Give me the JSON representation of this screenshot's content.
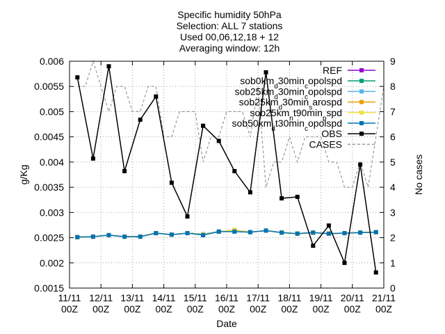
{
  "chart_data": {
    "type": "line",
    "title_lines": [
      "Specific humidity 50hPa",
      "Selection: ALL       7 stations",
      "Used 00,06,12,18 + 12",
      "Averaging window: 12h"
    ],
    "xlabel": "Date",
    "ylabel": "g/Kg",
    "y2label": "No cases",
    "grid": true,
    "legend_position": "top-right",
    "x_range": [
      0,
      20
    ],
    "y_range": [
      0.0015,
      0.006
    ],
    "y2_range": [
      0,
      9
    ],
    "x_ticks": [
      {
        "x": 0,
        "line1": "11/11",
        "line2": "00Z"
      },
      {
        "x": 2,
        "line1": "12/11",
        "line2": "00Z"
      },
      {
        "x": 4,
        "line1": "13/11",
        "line2": "00Z"
      },
      {
        "x": 6,
        "line1": "14/11",
        "line2": "00Z"
      },
      {
        "x": 8,
        "line1": "15/11",
        "line2": "00Z"
      },
      {
        "x": 10,
        "line1": "16/11",
        "line2": "00Z"
      },
      {
        "x": 12,
        "line1": "17/11",
        "line2": "00Z"
      },
      {
        "x": 14,
        "line1": "18/11",
        "line2": "00Z"
      },
      {
        "x": 16,
        "line1": "19/11",
        "line2": "00Z"
      },
      {
        "x": 18,
        "line1": "20/11",
        "line2": "00Z"
      },
      {
        "x": 20,
        "line1": "21/11",
        "line2": "00Z"
      }
    ],
    "y_ticks": [
      {
        "v": 0.0015,
        "label": "0.0015"
      },
      {
        "v": 0.002,
        "label": "0.002"
      },
      {
        "v": 0.0025,
        "label": "0.0025"
      },
      {
        "v": 0.003,
        "label": "0.003"
      },
      {
        "v": 0.0035,
        "label": "0.0035"
      },
      {
        "v": 0.004,
        "label": "0.004"
      },
      {
        "v": 0.0045,
        "label": "0.0045"
      },
      {
        "v": 0.005,
        "label": "0.005"
      },
      {
        "v": 0.0055,
        "label": "0.0055"
      },
      {
        "v": 0.006,
        "label": "0.006"
      }
    ],
    "y2_ticks": [
      {
        "v": 0,
        "label": "0"
      },
      {
        "v": 1,
        "label": "1"
      },
      {
        "v": 2,
        "label": "2"
      },
      {
        "v": 3,
        "label": "3"
      },
      {
        "v": 4,
        "label": "4"
      },
      {
        "v": 5,
        "label": "5"
      },
      {
        "v": 6,
        "label": "6"
      },
      {
        "v": 7,
        "label": "7"
      },
      {
        "v": 8,
        "label": "8"
      },
      {
        "v": 9,
        "label": "9"
      }
    ],
    "x": [
      0.5,
      1,
      1.5,
      2,
      2.5,
      3,
      3.5,
      4,
      4.5,
      5,
      5.5,
      6,
      6.5,
      7,
      7.5,
      8,
      8.5,
      9,
      9.5,
      10,
      10.5,
      11,
      11.5,
      12,
      12.5,
      13,
      13.5,
      14,
      14.5,
      15,
      15.5,
      16,
      16.5,
      17,
      17.5,
      18,
      18.5,
      19,
      19.5
    ],
    "series": [
      {
        "name": "REF",
        "color": "#9400d3",
        "marker": "square",
        "dash": "solid",
        "axis": "y",
        "legend_parts": [
          {
            "t": "REF"
          }
        ],
        "points": [
          [
            0.5,
            0.00251
          ],
          [
            1.5,
            0.00252
          ],
          [
            2.5,
            0.00255
          ],
          [
            3.5,
            0.00252
          ],
          [
            4.5,
            0.00252
          ],
          [
            5.5,
            0.00259
          ],
          [
            6.5,
            0.00256
          ],
          [
            7.5,
            0.00259
          ],
          [
            8.5,
            0.00257
          ],
          [
            9.5,
            0.00262
          ],
          [
            10.5,
            0.00263
          ],
          [
            11.5,
            0.00261
          ],
          [
            12.5,
            0.00264
          ],
          [
            13.5,
            0.0026
          ],
          [
            14.5,
            0.00258
          ],
          [
            15.5,
            0.0026
          ],
          [
            16.5,
            0.00258
          ],
          [
            17.5,
            0.00259
          ],
          [
            18.5,
            0.0026
          ],
          [
            19.5,
            0.00261
          ]
        ]
      },
      {
        "name": "sob0km_d30min_copolspd",
        "color": "#009e73",
        "marker": "square",
        "dash": "solid",
        "axis": "y",
        "legend_parts": [
          {
            "t": "sob0km"
          },
          {
            "t": "d",
            "sub": true
          },
          {
            "t": "30min"
          },
          {
            "t": "c",
            "sub": true
          },
          {
            "t": "opolspd"
          }
        ],
        "points": [
          [
            0.5,
            0.00251
          ],
          [
            1.5,
            0.00252
          ],
          [
            2.5,
            0.00255
          ],
          [
            3.5,
            0.00252
          ],
          [
            4.5,
            0.00252
          ],
          [
            5.5,
            0.00259
          ],
          [
            6.5,
            0.00256
          ],
          [
            7.5,
            0.00259
          ],
          [
            8.5,
            0.00257
          ],
          [
            9.5,
            0.00262
          ],
          [
            10.5,
            0.00264
          ],
          [
            11.5,
            0.00261
          ],
          [
            12.5,
            0.00264
          ],
          [
            13.5,
            0.0026
          ],
          [
            14.5,
            0.00258
          ],
          [
            15.5,
            0.0026
          ],
          [
            16.5,
            0.00258
          ],
          [
            17.5,
            0.00259
          ],
          [
            18.5,
            0.0026
          ],
          [
            19.5,
            0.00261
          ]
        ]
      },
      {
        "name": "sob25km_d30min_copolspd",
        "color": "#56b4e9",
        "marker": "square",
        "dash": "solid",
        "axis": "y",
        "legend_parts": [
          {
            "t": "sob25km"
          },
          {
            "t": "d",
            "sub": true
          },
          {
            "t": "30min"
          },
          {
            "t": "c",
            "sub": true
          },
          {
            "t": "opolspd"
          }
        ],
        "points": [
          [
            0.5,
            0.00251
          ],
          [
            1.5,
            0.00252
          ],
          [
            2.5,
            0.00255
          ],
          [
            3.5,
            0.00252
          ],
          [
            4.5,
            0.00252
          ],
          [
            5.5,
            0.00259
          ],
          [
            6.5,
            0.00256
          ],
          [
            7.5,
            0.00259
          ],
          [
            8.5,
            0.00257
          ],
          [
            9.5,
            0.00262
          ],
          [
            10.5,
            0.00263
          ],
          [
            11.5,
            0.00261
          ],
          [
            12.5,
            0.00264
          ],
          [
            13.5,
            0.0026
          ],
          [
            14.5,
            0.00258
          ],
          [
            15.5,
            0.0026
          ],
          [
            16.5,
            0.00258
          ],
          [
            17.5,
            0.00259
          ],
          [
            18.5,
            0.0026
          ],
          [
            19.5,
            0.00261
          ]
        ]
      },
      {
        "name": "sob25km_d30min_sarospd",
        "color": "#e69f00",
        "marker": "square",
        "dash": "solid",
        "axis": "y",
        "legend_parts": [
          {
            "t": "sob25km"
          },
          {
            "t": "d",
            "sub": true
          },
          {
            "t": "30min"
          },
          {
            "t": "s",
            "sub": true
          },
          {
            "t": "arospd"
          }
        ],
        "points": [
          [
            0.5,
            0.00251
          ],
          [
            1.5,
            0.00252
          ],
          [
            2.5,
            0.00255
          ],
          [
            3.5,
            0.00252
          ],
          [
            4.5,
            0.00252
          ],
          [
            5.5,
            0.00259
          ],
          [
            6.5,
            0.00256
          ],
          [
            7.5,
            0.00259
          ],
          [
            8.5,
            0.00256
          ],
          [
            9.5,
            0.00262
          ],
          [
            10.5,
            0.00265
          ],
          [
            11.5,
            0.00261
          ],
          [
            12.5,
            0.00264
          ],
          [
            13.5,
            0.0026
          ],
          [
            14.5,
            0.00258
          ],
          [
            15.5,
            0.0026
          ],
          [
            16.5,
            0.00258
          ],
          [
            17.5,
            0.00259
          ],
          [
            18.5,
            0.0026
          ],
          [
            19.5,
            0.00261
          ]
        ]
      },
      {
        "name": "sob25km_nt90min_pspd",
        "color": "#f0e442",
        "marker": "square",
        "dash": "solid",
        "axis": "y",
        "legend_parts": [
          {
            "t": "sob25km"
          },
          {
            "t": "n",
            "sub": true
          },
          {
            "t": "t90min"
          },
          {
            "t": "p",
            "sub": true
          },
          {
            "t": "spd"
          }
        ],
        "points": [
          [
            0.5,
            0.00251
          ],
          [
            1.5,
            0.00252
          ],
          [
            2.5,
            0.00255
          ],
          [
            3.5,
            0.00252
          ],
          [
            4.5,
            0.00252
          ],
          [
            5.5,
            0.00259
          ],
          [
            6.5,
            0.00256
          ],
          [
            7.5,
            0.00259
          ],
          [
            8.5,
            0.00256
          ],
          [
            9.5,
            0.00262
          ],
          [
            10.5,
            0.00264
          ],
          [
            11.5,
            0.00261
          ],
          [
            12.5,
            0.00264
          ],
          [
            13.5,
            0.0026
          ],
          [
            14.5,
            0.00258
          ],
          [
            15.5,
            0.0026
          ],
          [
            16.5,
            0.00258
          ],
          [
            17.5,
            0.00259
          ],
          [
            18.5,
            0.0026
          ],
          [
            19.5,
            0.00261
          ]
        ]
      },
      {
        "name": "sob50km_d30min_copolspd",
        "color": "#0072b2",
        "marker": "square",
        "dash": "solid",
        "axis": "y",
        "legend_parts": [
          {
            "t": "sob50km"
          },
          {
            "t": "d",
            "sub": true
          },
          {
            "t": "t30min"
          },
          {
            "t": "c",
            "sub": true
          },
          {
            "t": "opolspd"
          }
        ],
        "points": [
          [
            0.5,
            0.00251
          ],
          [
            1.5,
            0.00252
          ],
          [
            2.5,
            0.00255
          ],
          [
            3.5,
            0.00252
          ],
          [
            4.5,
            0.00252
          ],
          [
            5.5,
            0.00259
          ],
          [
            6.5,
            0.00256
          ],
          [
            7.5,
            0.00259
          ],
          [
            8.5,
            0.00255
          ],
          [
            9.5,
            0.00262
          ],
          [
            10.5,
            0.00262
          ],
          [
            11.5,
            0.00261
          ],
          [
            12.5,
            0.00264
          ],
          [
            13.5,
            0.0026
          ],
          [
            14.5,
            0.00258
          ],
          [
            15.5,
            0.0026
          ],
          [
            16.5,
            0.00258
          ],
          [
            17.5,
            0.00259
          ],
          [
            18.5,
            0.0026
          ],
          [
            19.5,
            0.00261
          ]
        ]
      },
      {
        "name": "OBS",
        "color": "#000000",
        "marker": "square",
        "dash": "solid",
        "axis": "y",
        "legend_parts": [
          {
            "t": "OBS"
          }
        ],
        "points": [
          [
            0.5,
            0.00568
          ],
          [
            1.5,
            0.00407
          ],
          [
            2.5,
            0.0059
          ],
          [
            3.5,
            0.00382
          ],
          [
            4.5,
            0.00484
          ],
          [
            5.5,
            0.0053
          ],
          [
            6.5,
            0.00359
          ],
          [
            7.5,
            0.00292
          ],
          [
            8.5,
            0.00472
          ],
          [
            9.5,
            0.00442
          ],
          [
            10.5,
            0.00382
          ],
          [
            11.5,
            0.0034
          ],
          [
            12.5,
            0.00578
          ],
          [
            13.5,
            0.00328
          ],
          [
            14.5,
            0.00331
          ],
          [
            15.5,
            0.00234
          ],
          [
            16.5,
            0.00274
          ],
          [
            17.5,
            0.002
          ],
          [
            18.5,
            0.00395
          ],
          [
            19.5,
            0.00181
          ]
        ]
      },
      {
        "name": "CASES",
        "color": "#999999",
        "marker": "none",
        "dash": "dashed",
        "axis": "y2",
        "legend_parts": [
          {
            "t": "CASES"
          }
        ],
        "points": [
          [
            0.5,
            8
          ],
          [
            1,
            8
          ],
          [
            1.5,
            9
          ],
          [
            2,
            8
          ],
          [
            2.5,
            7
          ],
          [
            3,
            8
          ],
          [
            3.5,
            8
          ],
          [
            4,
            7
          ],
          [
            4.5,
            7
          ],
          [
            5,
            8
          ],
          [
            5.5,
            8
          ],
          [
            6,
            6
          ],
          [
            6.5,
            6
          ],
          [
            7,
            7
          ],
          [
            7.5,
            7
          ],
          [
            8,
            7
          ],
          [
            8.5,
            5
          ],
          [
            9,
            6
          ],
          [
            9.5,
            6
          ],
          [
            10,
            7
          ],
          [
            10.5,
            7
          ],
          [
            11,
            7
          ],
          [
            11.5,
            6
          ],
          [
            12,
            8
          ],
          [
            12.5,
            4
          ],
          [
            13,
            5
          ],
          [
            13.5,
            5
          ],
          [
            14,
            6
          ],
          [
            14.5,
            5
          ],
          [
            15,
            6
          ],
          [
            15.5,
            6
          ],
          [
            16,
            6
          ],
          [
            16.5,
            5
          ],
          [
            17,
            5
          ],
          [
            17.5,
            4
          ],
          [
            18,
            4
          ],
          [
            18.5,
            5
          ],
          [
            19,
            4
          ],
          [
            19.5,
            6
          ],
          [
            20,
            8
          ]
        ]
      }
    ]
  }
}
